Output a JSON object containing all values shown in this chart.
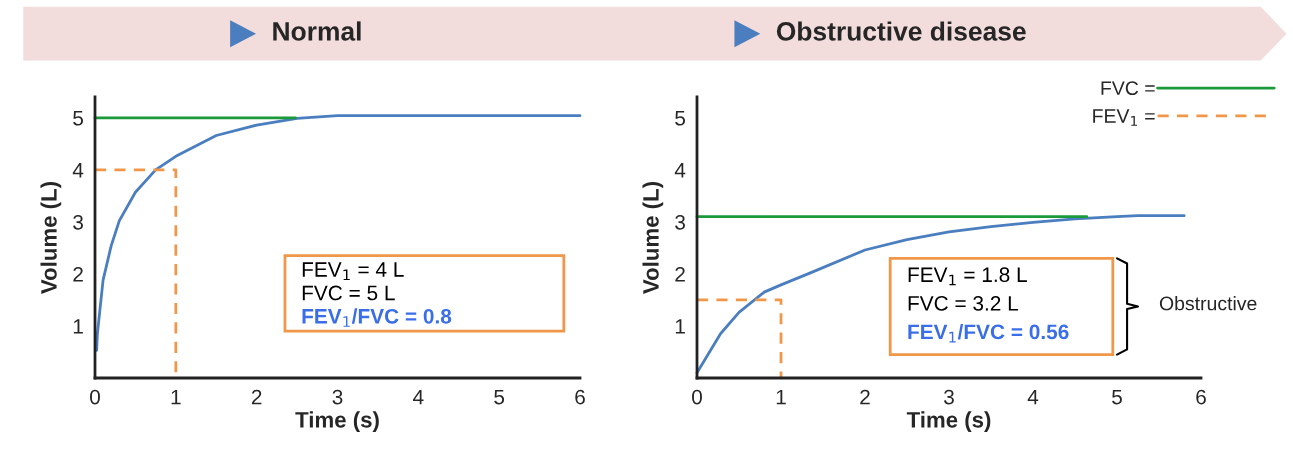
{
  "chart_data": [
    {
      "type": "line",
      "title": "Normal",
      "xlabel": "Time (s)",
      "ylabel": "Volume (L)",
      "xlim": [
        0,
        6
      ],
      "ylim": [
        0,
        5.4
      ],
      "xticks": [
        0,
        1,
        2,
        3,
        4,
        5,
        6
      ],
      "yticks": [
        1,
        2,
        3,
        4,
        5
      ],
      "grid": false,
      "legend": false,
      "series": [
        {
          "color": "#4a7ebf",
          "x": [
            0.02,
            0.03,
            0.1,
            0.2,
            0.3,
            0.5,
            0.75,
            1.0,
            1.5,
            2,
            2.5,
            3,
            6
          ],
          "values": [
            0.53,
            0.86,
            1.88,
            2.54,
            3.02,
            3.57,
            4.0,
            4.26,
            4.66,
            4.86,
            4.99,
            5.04,
            5.04
          ],
          "line_style": "solid"
        },
        {
          "color": "#1a9a3a",
          "x": [
            0,
            2.48
          ],
          "values": [
            5,
            5
          ],
          "line_style": "solid"
        },
        {
          "color": "#f0974a",
          "x": [
            0,
            1,
            1
          ],
          "values": [
            4,
            4,
            0
          ],
          "line_style": "dashed"
        }
      ],
      "annotations": [
        "FEV$_{1}$ = 4 L",
        "FVC = 5 L",
        "FEV$_{1}$/FVC = 0.8"
      ]
    },
    {
      "type": "line",
      "title": "Obstructive disease",
      "xlabel": "Time (s)",
      "ylabel": "Volume (L)",
      "xlim": [
        0,
        6
      ],
      "ylim": [
        0,
        5.4
      ],
      "xticks": [
        0,
        1,
        2,
        3,
        4,
        5,
        6
      ],
      "yticks": [
        1,
        2,
        3,
        4,
        5
      ],
      "grid": false,
      "legend": "top right",
      "series": [
        {
          "color": "#4a7ebf",
          "x": [
            0,
            0.28,
            0.5,
            0.8,
            1.0,
            1.35,
            2,
            2.5,
            3,
            3.5,
            4,
            4.5,
            5,
            5.25,
            5.8
          ],
          "values": [
            0.1,
            0.85,
            1.26,
            1.65,
            1.79,
            2.02,
            2.46,
            2.66,
            2.81,
            2.91,
            2.99,
            3.06,
            3.1,
            3.12,
            3.12
          ],
          "line_style": "solid"
        },
        {
          "name": "FVC =",
          "color": "#1a9a3a",
          "x": [
            0,
            4.64
          ],
          "values": [
            3.1,
            3.1
          ],
          "line_style": "solid"
        },
        {
          "name": "FEV$_{1}$ =",
          "color": "#f0974a",
          "x": [
            0,
            1,
            1
          ],
          "values": [
            1.5,
            1.5,
            0
          ],
          "line_style": "dashed"
        }
      ],
      "annotations": [
        "FEV$_{1}$ = 1.8 L",
        "FVC = 3.2 L",
        "FEV$_{1}$/FVC = 0.56",
        "Obstructive"
      ]
    }
  ]
}
